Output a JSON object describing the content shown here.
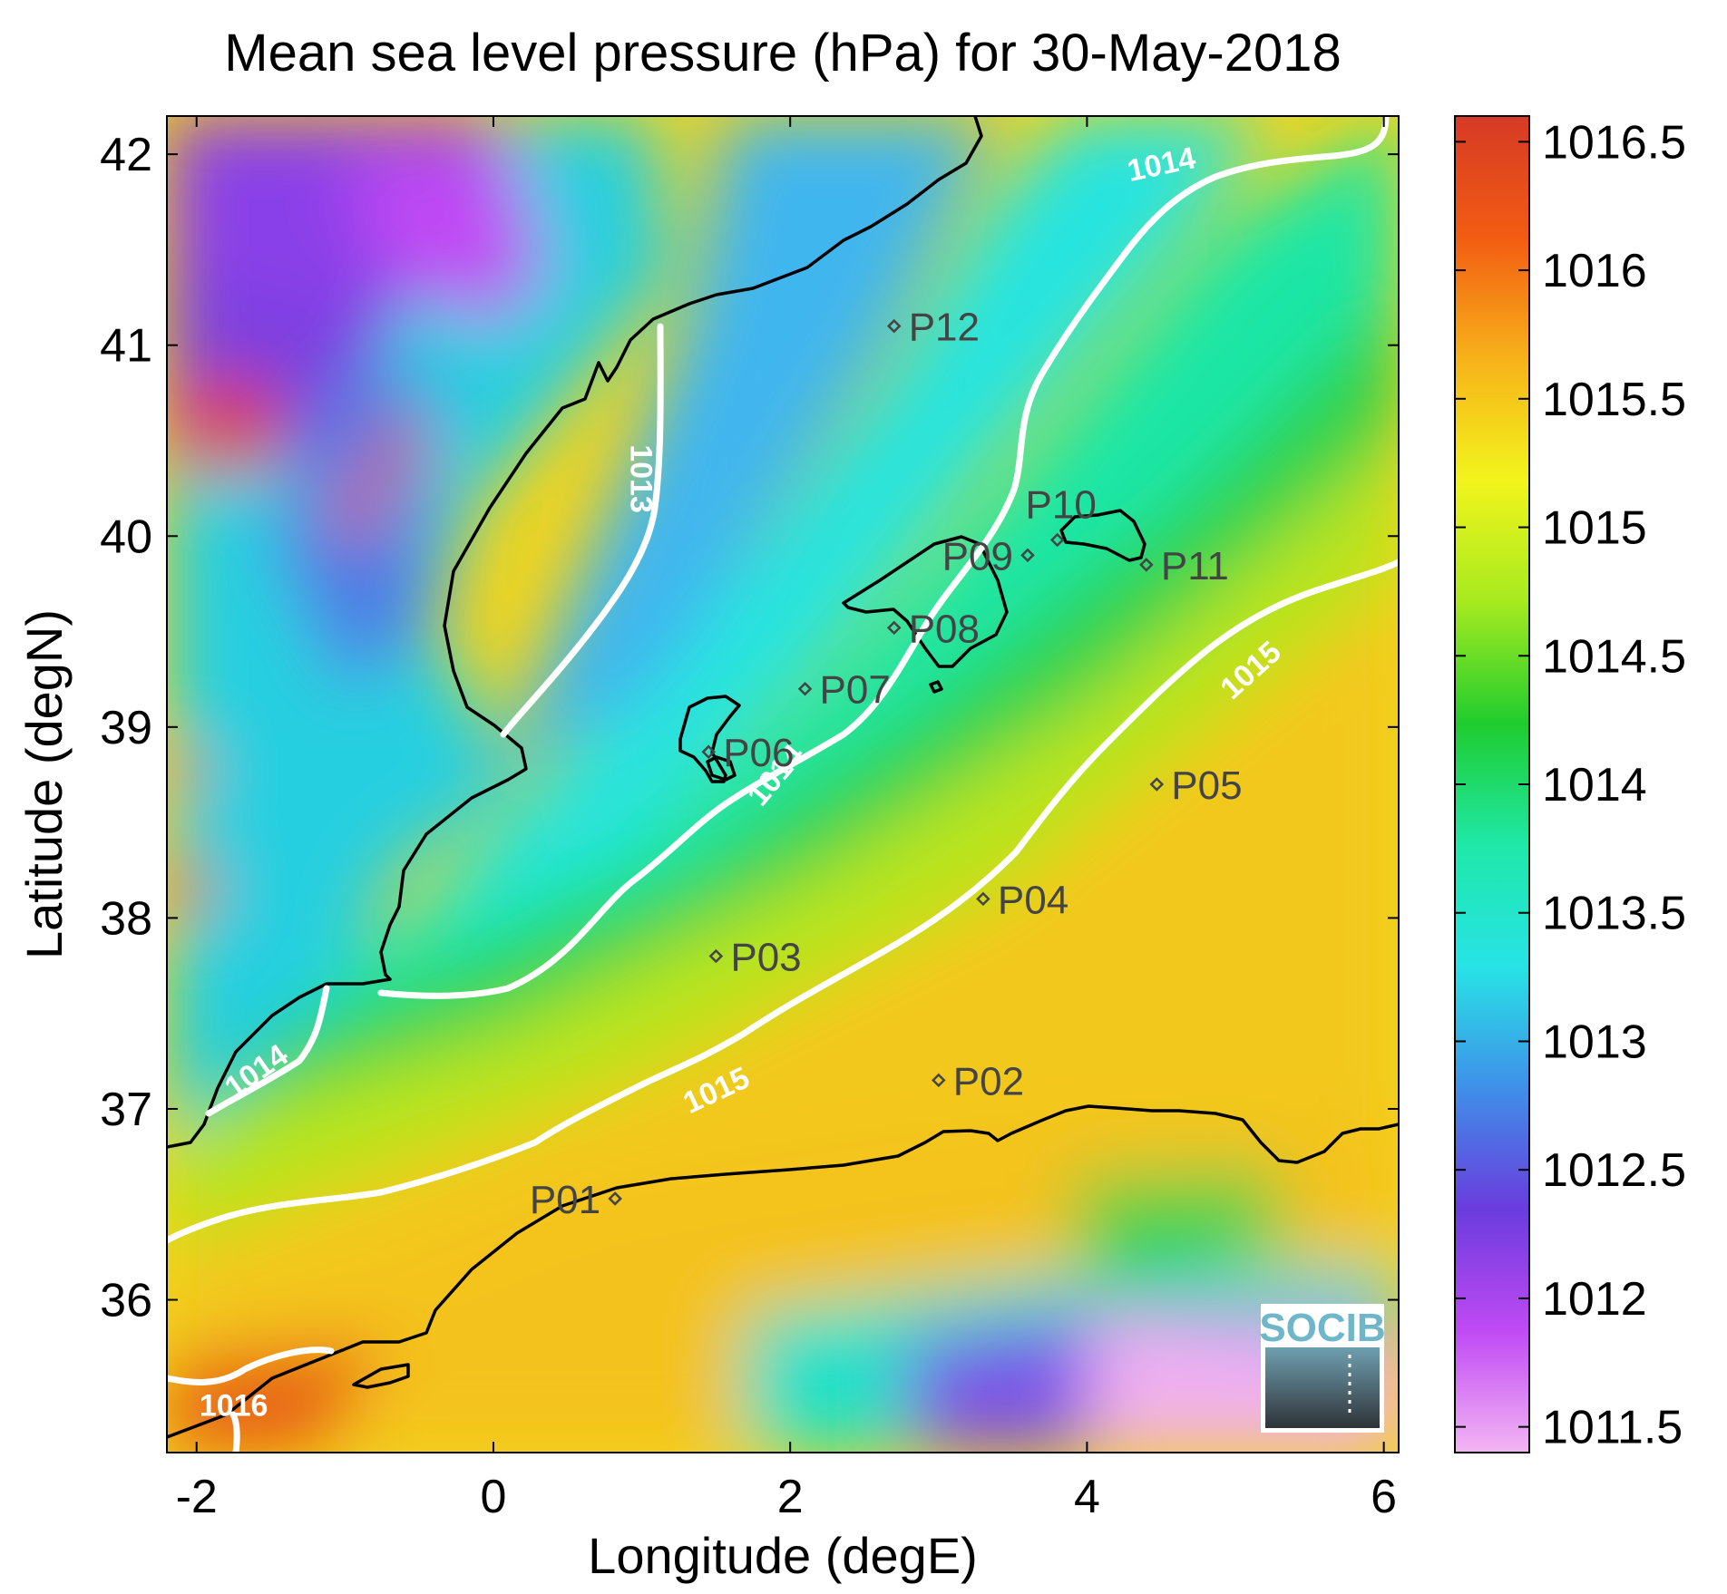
{
  "title": "Mean sea level pressure (hPa) for 30-May-2018",
  "x_axis": {
    "label": "Longitude (degE)",
    "range": [
      -2.2,
      6.1
    ],
    "ticks": [
      -2,
      0,
      2,
      4,
      6
    ],
    "tick_labels": [
      "-2",
      "0",
      "2",
      "4",
      "6"
    ]
  },
  "y_axis": {
    "label": "Latitude (degN)",
    "range": [
      35.2,
      42.2
    ],
    "ticks": [
      36,
      37,
      38,
      39,
      40,
      41,
      42
    ],
    "tick_labels": [
      "36",
      "37",
      "38",
      "39",
      "40",
      "41",
      "42"
    ]
  },
  "colorbar": {
    "range": [
      1011.4,
      1016.6
    ],
    "ticks": [
      1011.5,
      1012,
      1012.5,
      1013,
      1013.5,
      1014,
      1014.5,
      1015,
      1015.5,
      1016,
      1016.5
    ],
    "tick_labels": [
      "1011.5",
      "1012",
      "1012.5",
      "1013",
      "1013.5",
      "1014",
      "1014.5",
      "1015",
      "1015.5",
      "1016",
      "1016.5"
    ],
    "colors": [
      "#f3b6f3",
      "#c04af4",
      "#6a3cdd",
      "#3f8fe8",
      "#27e3e6",
      "#1fe8a8",
      "#1fcc2e",
      "#a6ea1f",
      "#f2f41c",
      "#f7b21a",
      "#f25c12",
      "#d63a26"
    ]
  },
  "contour_labels": [
    {
      "text": "1013",
      "lon": 1.0,
      "lat": 40.3,
      "angle": 90
    },
    {
      "text": "1014",
      "lon": 4.5,
      "lat": 41.95,
      "angle": -12
    },
    {
      "text": "1014",
      "lon": 1.9,
      "lat": 38.75,
      "angle": -50
    },
    {
      "text": "1014",
      "lon": -1.6,
      "lat": 37.2,
      "angle": -35
    },
    {
      "text": "1015",
      "lon": 5.1,
      "lat": 39.3,
      "angle": -42
    },
    {
      "text": "1015",
      "lon": 1.5,
      "lat": 37.1,
      "angle": -25
    },
    {
      "text": "1016",
      "lon": -1.75,
      "lat": 35.45,
      "angle": 0
    }
  ],
  "stations": [
    {
      "name": "P01",
      "lon": 0.82,
      "lat": 36.53,
      "label_side": "left"
    },
    {
      "name": "P02",
      "lon": 3.0,
      "lat": 37.15,
      "label_side": "right"
    },
    {
      "name": "P03",
      "lon": 1.5,
      "lat": 37.8,
      "label_side": "right"
    },
    {
      "name": "P04",
      "lon": 3.3,
      "lat": 38.1,
      "label_side": "right"
    },
    {
      "name": "P05",
      "lon": 4.47,
      "lat": 38.7,
      "label_side": "right"
    },
    {
      "name": "P06",
      "lon": 1.45,
      "lat": 38.87,
      "label_side": "right"
    },
    {
      "name": "P07",
      "lon": 2.1,
      "lat": 39.2,
      "label_side": "right"
    },
    {
      "name": "P08",
      "lon": 2.7,
      "lat": 39.52,
      "label_side": "right"
    },
    {
      "name": "P09",
      "lon": 3.6,
      "lat": 39.9,
      "label_side": "left"
    },
    {
      "name": "P10",
      "lon": 3.8,
      "lat": 39.98,
      "label_side": "above"
    },
    {
      "name": "P11",
      "lon": 4.4,
      "lat": 39.85,
      "label_side": "right"
    },
    {
      "name": "P12",
      "lon": 2.7,
      "lat": 41.1,
      "label_side": "right"
    }
  ],
  "logo": {
    "text": "SOCIB"
  }
}
